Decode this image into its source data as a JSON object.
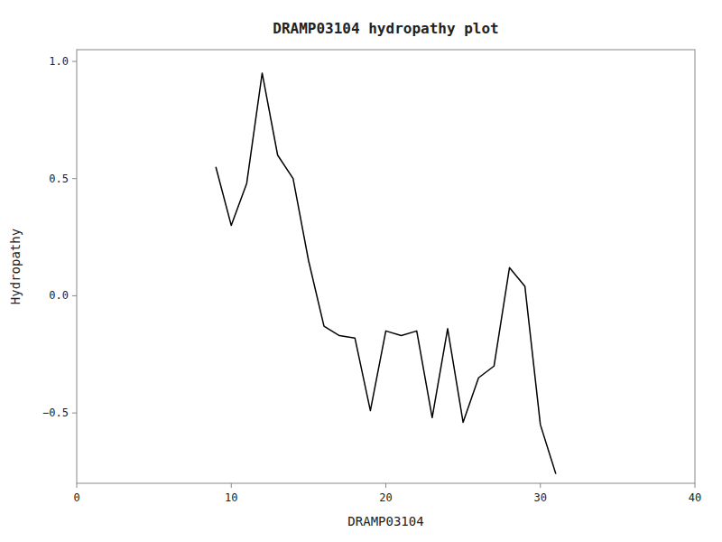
{
  "chart_data": {
    "type": "line",
    "title": "DRAMP03104 hydropathy plot",
    "xlabel": "DRAMP03104",
    "ylabel": "Hydropathy",
    "x": [
      9,
      10,
      11,
      12,
      13,
      14,
      15,
      16,
      17,
      18,
      19,
      20,
      21,
      22,
      23,
      24,
      25,
      26,
      27,
      28,
      29,
      30,
      31
    ],
    "values": [
      0.55,
      0.3,
      0.48,
      0.95,
      0.6,
      0.5,
      0.15,
      -0.13,
      -0.17,
      -0.18,
      -0.49,
      -0.15,
      -0.17,
      -0.15,
      -0.52,
      -0.14,
      -0.54,
      -0.35,
      -0.3,
      0.12,
      0.04,
      -0.55,
      -0.76
    ],
    "color": "#000000",
    "xlim": [
      0,
      40
    ],
    "ylim": [
      -0.8,
      1.05
    ],
    "xticks": [
      0,
      10,
      20,
      30,
      40
    ],
    "yticks": [
      {
        "value": 1.0,
        "label": "1.0"
      },
      {
        "value": 0.5,
        "label": "0.5"
      },
      {
        "value": 0.0,
        "label": "0.0"
      },
      {
        "value": -0.5,
        "label": "−0.5"
      }
    ],
    "grid": false
  }
}
